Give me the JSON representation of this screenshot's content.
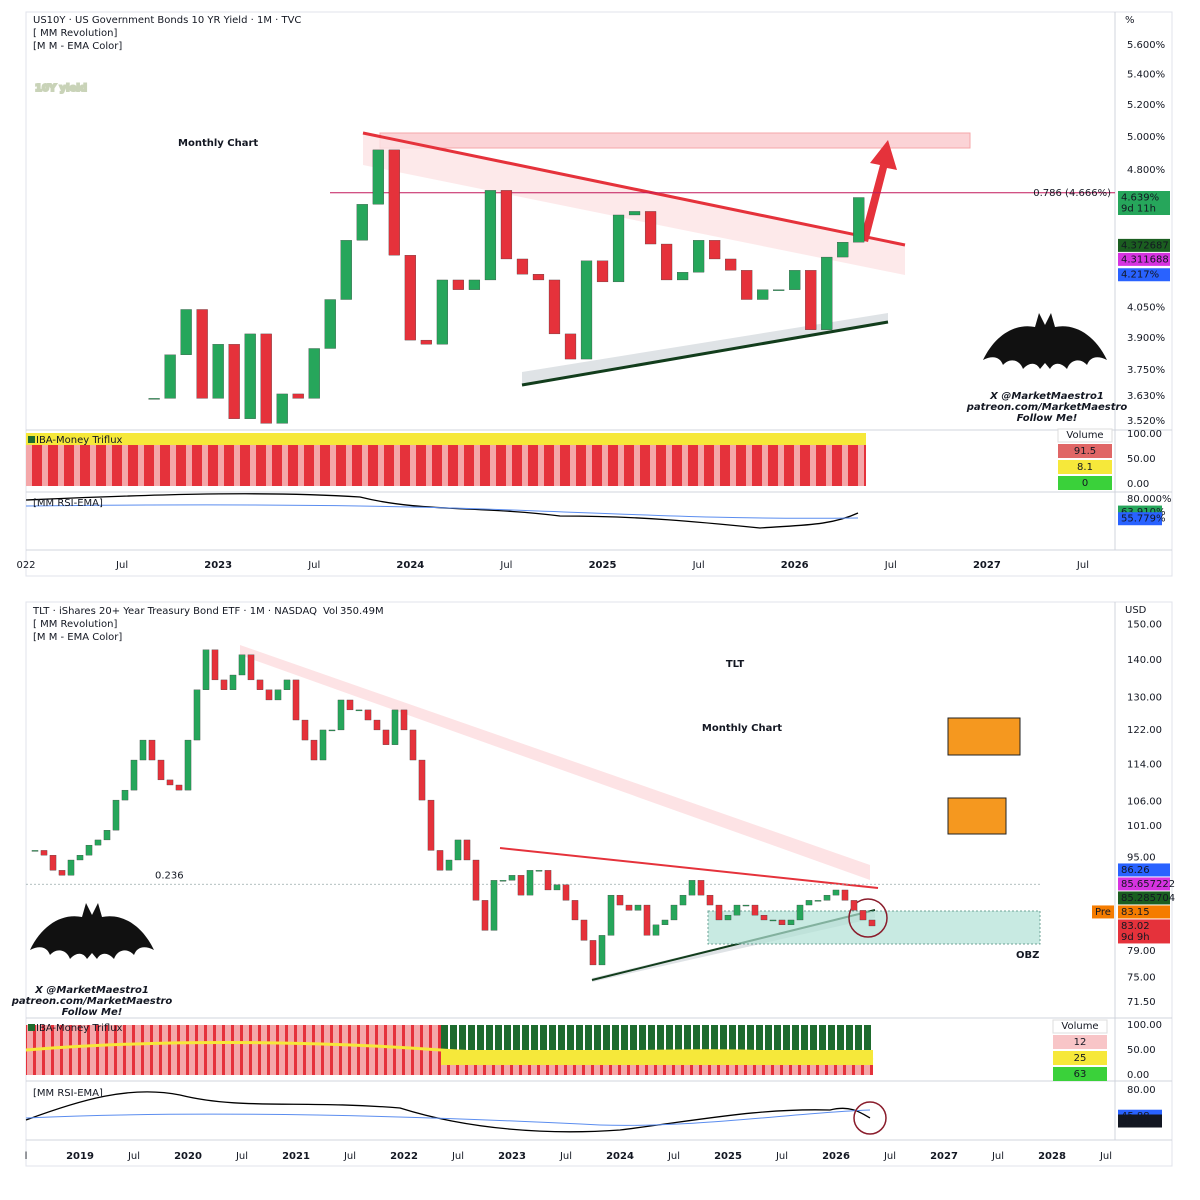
{
  "chart_data": [
    {
      "type": "candlestick",
      "symbol_line": "US10Y · US Government Bonds 10 YR Yield · 1M · TVC",
      "indicators": [
        "[ MM Revolution]",
        "[M M - EMA Color]"
      ],
      "title": "10Y yield",
      "subtitle": "Monthly Chart",
      "unit": "%",
      "log_scale": true,
      "grid": false,
      "up_color": "#26a65b",
      "down_color": "#e5323b",
      "x": [
        "2022-09",
        "2022-10",
        "2022-11",
        "2022-12",
        "2023-01",
        "2023-02",
        "2023-03",
        "2023-04",
        "2023-05",
        "2023-06",
        "2023-07",
        "2023-08",
        "2023-09",
        "2023-10",
        "2023-11",
        "2023-12",
        "2024-01",
        "2024-02",
        "2024-03",
        "2024-04",
        "2024-05",
        "2024-06",
        "2024-07",
        "2024-08",
        "2024-09",
        "2024-10",
        "2024-11",
        "2024-12",
        "2025-01",
        "2025-02",
        "2025-03",
        "2025-04",
        "2025-05",
        "2025-06",
        "2025-07",
        "2025-08",
        "2025-09",
        "2025-10",
        "2025-11",
        "2025-12",
        "2026-01",
        "2026-02",
        "2026-03",
        "2026-04",
        "2026-05"
      ],
      "values": [
        3.62,
        3.82,
        4.04,
        3.62,
        3.87,
        3.53,
        3.92,
        3.51,
        3.64,
        3.62,
        3.85,
        4.09,
        4.4,
        4.6,
        4.92,
        4.32,
        3.89,
        3.87,
        4.19,
        4.14,
        4.19,
        4.68,
        4.3,
        4.22,
        4.19,
        3.92,
        3.8,
        4.29,
        4.18,
        4.54,
        4.56,
        4.38,
        4.19,
        4.23,
        4.4,
        4.3,
        4.24,
        4.09,
        4.14,
        4.14,
        4.24,
        3.94,
        4.31,
        4.39,
        4.639
      ],
      "xlim": [
        "2022-01",
        "2027-09"
      ],
      "xticks": [
        {
          "value": "2022-01",
          "label": "022"
        },
        {
          "value": "2022-07",
          "label": "Jul"
        },
        {
          "value": "2023-01",
          "label": "2023"
        },
        {
          "value": "2023-07",
          "label": "Jul"
        },
        {
          "value": "2024-01",
          "label": "2024"
        },
        {
          "value": "2024-07",
          "label": "Jul"
        },
        {
          "value": "2025-01",
          "label": "2025"
        },
        {
          "value": "2025-07",
          "label": "Jul"
        },
        {
          "value": "2026-01",
          "label": "2026"
        },
        {
          "value": "2026-07",
          "label": "Jul"
        },
        {
          "value": "2027-01",
          "label": "2027"
        },
        {
          "value": "2027-07",
          "label": "Jul"
        }
      ],
      "ylim": [
        3.49,
        5.79
      ],
      "yticks": [
        {
          "value": 5.6,
          "label": "5.600%"
        },
        {
          "value": 5.4,
          "label": "5.400%"
        },
        {
          "value": 5.2,
          "label": "5.200%"
        },
        {
          "value": 5.0,
          "label": "5.000%"
        },
        {
          "value": 4.8,
          "label": "4.800%"
        },
        {
          "value": 4.05,
          "label": "4.050%"
        },
        {
          "value": 3.9,
          "label": "3.900%"
        },
        {
          "value": 3.75,
          "label": "3.750%"
        },
        {
          "value": 3.63,
          "label": "3.630%"
        },
        {
          "value": 3.52,
          "label": "3.520%"
        }
      ],
      "level": {
        "price": 4.666,
        "label": "0.786 (4.666%)"
      },
      "badges": [
        {
          "value": 4.639,
          "label": "4.639%",
          "sub": "9d 11h",
          "color": "#26a65b"
        },
        {
          "value": 4.372687,
          "color": "#1b5e20"
        },
        {
          "value": 4.311688,
          "color": "#d633e0"
        },
        {
          "value": 4.217,
          "label": "4.217%",
          "color": "#2962ff"
        }
      ],
      "triflux": {
        "title": "IBA-Money Triflux",
        "legend_title": "Volume",
        "legend": [
          91.5,
          8.1,
          0
        ],
        "ylim": [
          -12,
          104
        ],
        "yticks": [
          {
            "value": 100,
            "label": "100.00"
          },
          {
            "value": 50,
            "label": "50.00"
          },
          {
            "value": 0,
            "label": "0.00"
          }
        ]
      },
      "rsi": {
        "title": "[MM RSI-EMA]",
        "ylim": [
          20,
          86
        ],
        "yticks": [
          {
            "value": 80,
            "label": "80.000%"
          }
        ],
        "badges": [
          {
            "value": 63.91,
            "label": "63.910%",
            "color": "#26a65b"
          },
          {
            "value": 55.779,
            "label": "55.779%",
            "color": "#2962ff"
          }
        ]
      },
      "watermark": [
        "X @MarketMaestro1",
        "patreon.com/MarketMaestro",
        "Follow Me!"
      ]
    },
    {
      "type": "candlestick",
      "symbol_line": "TLT · iShares 20+ Year Treasury Bond ETF · 1M · NASDAQ",
      "volume_label": "Vol",
      "volume": "350.49M",
      "indicators": [
        "[ MM Revolution]",
        "[M M - EMA Color]"
      ],
      "title": "TLT",
      "subtitle": "Monthly Chart",
      "unit": "USD",
      "zone_label": "OBZ",
      "log_scale": true,
      "grid": false,
      "up_color": "#26a65b",
      "down_color": "#e5323b",
      "x": [
        "2018-08",
        "2018-09",
        "2018-10",
        "2018-11",
        "2018-12",
        "2019-01",
        "2019-02",
        "2019-03",
        "2019-04",
        "2019-05",
        "2019-06",
        "2019-07",
        "2019-08",
        "2019-09",
        "2019-10",
        "2019-11",
        "2019-12",
        "2020-01",
        "2020-02",
        "2020-03",
        "2020-04",
        "2020-05",
        "2020-06",
        "2020-07",
        "2020-08",
        "2020-09",
        "2020-10",
        "2020-11",
        "2020-12",
        "2021-01",
        "2021-02",
        "2021-03",
        "2021-04",
        "2021-05",
        "2021-06",
        "2021-07",
        "2021-08",
        "2021-09",
        "2021-10",
        "2021-11",
        "2021-12",
        "2022-01",
        "2022-02",
        "2022-03",
        "2022-04",
        "2022-05",
        "2022-06",
        "2022-07",
        "2022-08",
        "2022-09",
        "2022-10",
        "2022-11",
        "2022-12",
        "2023-01",
        "2023-02",
        "2023-03",
        "2023-04",
        "2023-05",
        "2023-06",
        "2023-07",
        "2023-08",
        "2023-09",
        "2023-10",
        "2023-11",
        "2023-12",
        "2024-01",
        "2024-02",
        "2024-03",
        "2024-04",
        "2024-05",
        "2024-06",
        "2024-07",
        "2024-08",
        "2024-09",
        "2024-10",
        "2024-11",
        "2024-12",
        "2025-01",
        "2025-02",
        "2025-03",
        "2025-04",
        "2025-05",
        "2025-06",
        "2025-07",
        "2025-08",
        "2025-09",
        "2025-10",
        "2025-11",
        "2025-12",
        "2026-01",
        "2026-02",
        "2026-03",
        "2026-04",
        "2026-05"
      ],
      "values": [
        96.3,
        95.4,
        92.6,
        91.7,
        94.5,
        95.4,
        97.3,
        98.3,
        100.2,
        106.3,
        108.4,
        115.0,
        119.6,
        115.0,
        110.6,
        109.5,
        108.4,
        119.6,
        132.0,
        142.8,
        134.6,
        132.0,
        135.9,
        141.4,
        134.6,
        132.0,
        129.4,
        132.0,
        134.6,
        124.4,
        119.6,
        115.0,
        122.0,
        122.0,
        129.4,
        126.9,
        126.9,
        124.4,
        122.0,
        118.5,
        126.9,
        122.0,
        115.0,
        106.3,
        96.3,
        92.6,
        94.5,
        98.3,
        94.5,
        87.3,
        82.3,
        90.8,
        90.8,
        91.7,
        88.2,
        92.6,
        92.6,
        89.1,
        90.0,
        87.3,
        84.0,
        80.7,
        76.9,
        81.5,
        88.2,
        86.5,
        85.6,
        86.5,
        81.5,
        83.2,
        84.0,
        86.5,
        88.2,
        90.8,
        88.2,
        86.5,
        84.0,
        84.8,
        86.5,
        86.5,
        84.8,
        84.0,
        84.0,
        83.2,
        84.0,
        86.5,
        87.3,
        87.3,
        88.2,
        89.1,
        87.3,
        85.6,
        84.0,
        83.02
      ],
      "xlim": [
        "2018-07",
        "2028-08"
      ],
      "xticks": [
        {
          "value": "2018-07",
          "label": "l"
        },
        {
          "value": "2019-01",
          "label": "2019"
        },
        {
          "value": "2019-07",
          "label": "Jul"
        },
        {
          "value": "2020-01",
          "label": "2020"
        },
        {
          "value": "2020-07",
          "label": "Jul"
        },
        {
          "value": "2021-01",
          "label": "2021"
        },
        {
          "value": "2021-07",
          "label": "Jul"
        },
        {
          "value": "2022-01",
          "label": "2022"
        },
        {
          "value": "2022-07",
          "label": "Jul"
        },
        {
          "value": "2023-01",
          "label": "2023"
        },
        {
          "value": "2023-07",
          "label": "Jul"
        },
        {
          "value": "2024-01",
          "label": "2024"
        },
        {
          "value": "2024-07",
          "label": "Jul"
        },
        {
          "value": "2025-01",
          "label": "2025"
        },
        {
          "value": "2025-07",
          "label": "Jul"
        },
        {
          "value": "2026-01",
          "label": "2026"
        },
        {
          "value": "2026-07",
          "label": "Jul"
        },
        {
          "value": "2027-01",
          "label": "2027"
        },
        {
          "value": "2027-07",
          "label": "Jul"
        },
        {
          "value": "2028-01",
          "label": "2028"
        },
        {
          "value": "2028-07",
          "label": "Jul"
        }
      ],
      "ylim": [
        69.7,
        152
      ],
      "yticks": [
        {
          "value": 150,
          "label": "150.00"
        },
        {
          "value": 140,
          "label": "140.00"
        },
        {
          "value": 130,
          "label": "130.00"
        },
        {
          "value": 122,
          "label": "122.00"
        },
        {
          "value": 114,
          "label": "114.00"
        },
        {
          "value": 106,
          "label": "106.00"
        },
        {
          "value": 101,
          "label": "101.00"
        },
        {
          "value": 95,
          "label": "95.00"
        },
        {
          "value": 79,
          "label": "79.00"
        },
        {
          "value": 75,
          "label": "75.00"
        },
        {
          "value": 71.5,
          "label": "71.50"
        }
      ],
      "level": {
        "price": 90.1,
        "ratio": 0.236
      },
      "badges": [
        {
          "value": 86.26,
          "color": "#2962ff"
        },
        {
          "value": 85.657222,
          "color": "#d633e0"
        },
        {
          "value": 85.285704,
          "color": "#1b5e20"
        },
        {
          "value": 83.15,
          "tag": "Pre",
          "color": "#f57c00"
        },
        {
          "value": 83.02,
          "sub": "9d 9h",
          "color": "#e5323b"
        }
      ],
      "triflux": {
        "title": "IBA-Money Triflux",
        "legend_title": "Volume",
        "legend": [
          12,
          25,
          63
        ],
        "ylim": [
          -6,
          110
        ],
        "yticks": [
          {
            "value": 100,
            "label": "100.00"
          },
          {
            "value": 50,
            "label": "50.00"
          },
          {
            "value": 0,
            "label": "0.00"
          }
        ]
      },
      "rsi": {
        "title": "[MM RSI-EMA]",
        "ylim": [
          20,
          88
        ],
        "yticks": [
          {
            "value": 80,
            "label": "80.00"
          }
        ],
        "badges": [
          {
            "value": 45.88,
            "color": "#2962ff"
          },
          {
            "value": 39.6,
            "label": "39.60",
            "color": "#131722"
          }
        ]
      },
      "watermark": [
        "X @MarketMaestro1",
        "patreon.com/MarketMaestro",
        "Follow Me!"
      ]
    }
  ]
}
